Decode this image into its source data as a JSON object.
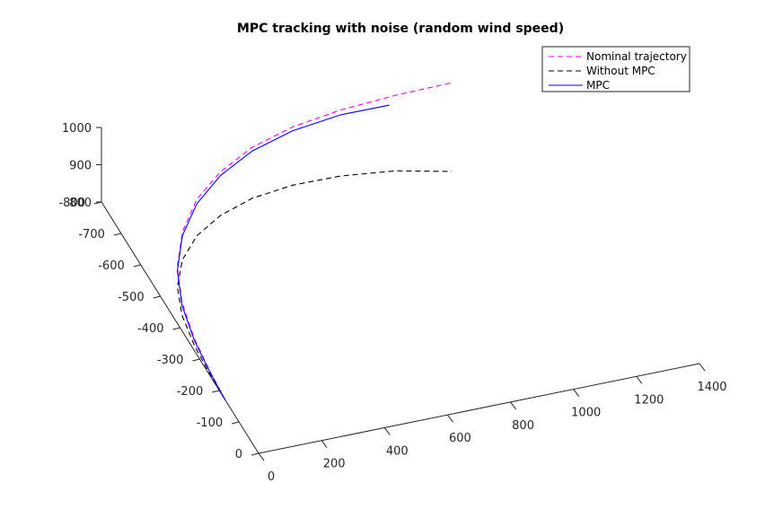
{
  "chart_data": {
    "type": "line",
    "title": "MPC tracking with noise (random wind speed)",
    "xlabel": "",
    "ylabel": "",
    "zlabel": "",
    "x_ticks": [
      "0",
      "200",
      "400",
      "600",
      "800",
      "1000",
      "1200",
      "1400"
    ],
    "y_ticks": [
      "0",
      "-100",
      "-200",
      "-300",
      "-400",
      "-500",
      "-600",
      "-700",
      "-800"
    ],
    "z_ticks": [
      "800",
      "900",
      "1000"
    ],
    "xlim": [
      0,
      1400
    ],
    "ylim": [
      0,
      -800
    ],
    "zlim": [
      800,
      1000
    ],
    "grid": false,
    "legend_position": "top-right",
    "series": [
      {
        "name": "Nominal trajectory",
        "color": "#ff00ff",
        "dash": "dashed",
        "x": [
          0,
          2,
          8,
          25,
          60,
          120,
          200,
          300,
          420,
          560,
          720,
          900,
          1080
        ],
        "y": [
          -170,
          -250,
          -340,
          -430,
          -510,
          -580,
          -635,
          -675,
          -705,
          -725,
          -738,
          -745,
          -748
        ],
        "z": [
          800,
          808,
          820,
          838,
          860,
          885,
          912,
          935,
          955,
          968,
          975,
          978,
          978
        ]
      },
      {
        "name": "Without MPC",
        "color": "#000000",
        "dash": "dashed",
        "x": [
          0,
          2,
          8,
          25,
          60,
          120,
          200,
          300,
          420,
          560,
          720,
          900,
          1080
        ],
        "y": [
          -170,
          -250,
          -340,
          -430,
          -510,
          -580,
          -635,
          -675,
          -705,
          -725,
          -738,
          -745,
          -748
        ],
        "z": [
          800,
          800,
          802,
          804,
          806,
          810,
          814,
          818,
          818,
          812,
          798,
          775,
          740
        ]
      },
      {
        "name": "MPC",
        "color": "#0000ff",
        "dash": "solid",
        "x": [
          0,
          2,
          8,
          25,
          60,
          120,
          200,
          300,
          420,
          560,
          720,
          880
        ],
        "y": [
          -170,
          -250,
          -340,
          -430,
          -510,
          -580,
          -635,
          -675,
          -705,
          -725,
          -738,
          -745
        ],
        "z": [
          800,
          806,
          815,
          830,
          850,
          875,
          900,
          925,
          945,
          958,
          962,
          955
        ]
      }
    ]
  }
}
